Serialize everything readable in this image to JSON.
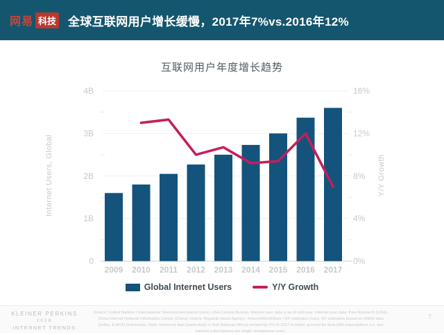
{
  "header": {
    "logo_brand": "网易",
    "logo_sub": "科技",
    "title": "全球互联网用户增长缓慢，2017年7%vs.2016年12%"
  },
  "chart_data": {
    "type": "bar",
    "title": "互联网用户年度增长趋势",
    "categories": [
      "2009",
      "2010",
      "2011",
      "2012",
      "2013",
      "2014",
      "2015",
      "2016",
      "2017"
    ],
    "series": [
      {
        "name": "Global Internet Users",
        "type": "bar",
        "axis": "left",
        "unit": "B",
        "color": "#14537C",
        "values": [
          1.6,
          1.8,
          2.05,
          2.27,
          2.5,
          2.73,
          3.0,
          3.37,
          3.6
        ]
      },
      {
        "name": "Y/Y Growth",
        "type": "line",
        "axis": "right",
        "unit": "%",
        "color": "#C41E5C",
        "values": [
          null,
          13,
          13.3,
          10,
          10.7,
          9.2,
          9.4,
          12,
          7
        ]
      }
    ],
    "left_axis": {
      "label": "Internet Users, Global",
      "min": 0,
      "max": 4,
      "ticks": [
        "0",
        "1B",
        "2B",
        "3B",
        "4B"
      ]
    },
    "right_axis": {
      "label": "Y/Y Growth",
      "min": 0,
      "max": 16,
      "ticks": [
        "0%",
        "4%",
        "8%",
        "12%",
        "16%"
      ]
    },
    "grid": true,
    "legend_position": "bottom"
  },
  "footer": {
    "brand_line1": "KLEINER PERKINS",
    "brand_line2": "2018",
    "brand_line3": "INTERNET TRENDS",
    "source": "Source: United Nations / International Telecommunications Union, USA Census Bureau. Internet user data is as of mid-year. Internet user data: Pew Research (USA), China Internet Network Information Center (China), Islamic Republic News Agency / InternetWorldStats / KP estimates (Iran), KP estimates based on IAMAI data (India), & APJII (Indonesia). Note: Historical data (particularly in Sub-Saharan Africa) revised by ITU in 2017 to better account for dual-SIM subscriptions (i.e. two internet subscriptions per single smartphone user).",
    "page": "7"
  },
  "colors": {
    "header_bg": "#15566F",
    "bar": "#14537C",
    "line": "#C41E5C",
    "logo_red": "#B9382F",
    "axis_text": "#C5C8CB",
    "gridline": "#EFEFEF",
    "baseline": "#D8D8D8"
  }
}
